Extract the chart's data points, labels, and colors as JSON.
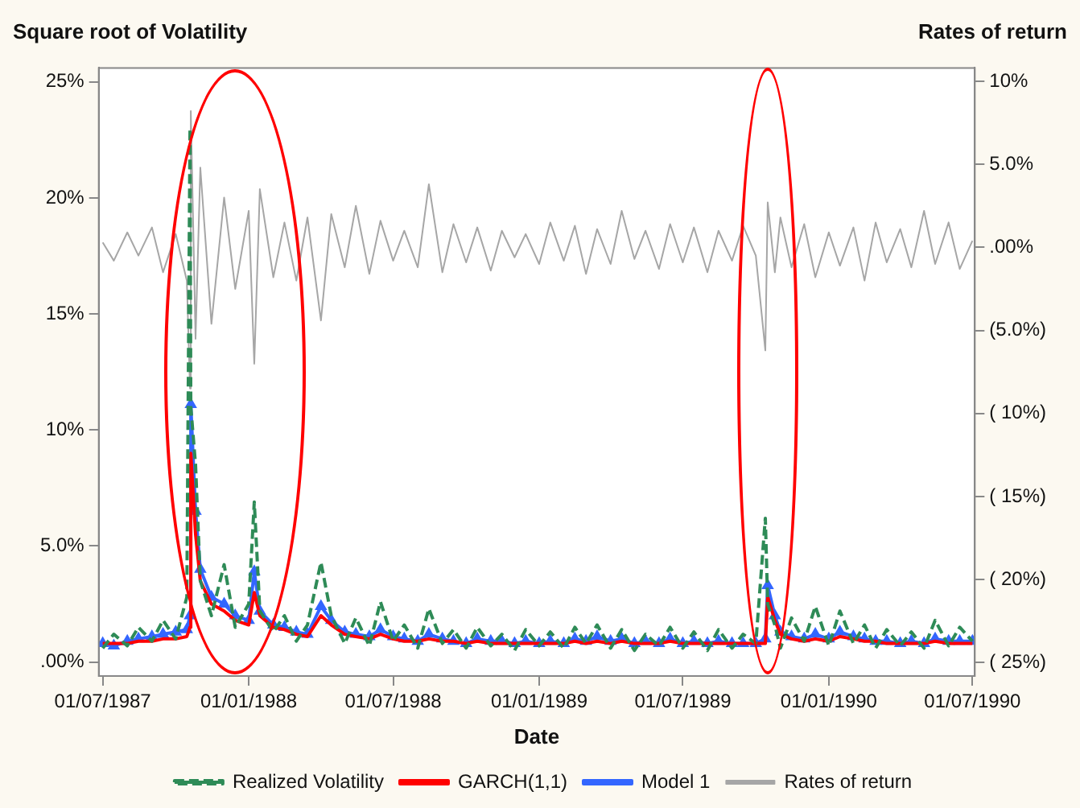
{
  "chart_data": {
    "type": "line",
    "ylabel": "Square root of Volatility",
    "y2label": "Rates of return",
    "xlabel": "Date",
    "x": [
      "1987-07-01",
      "1987-07-15",
      "1987-08-01",
      "1987-08-15",
      "1987-09-01",
      "1987-09-15",
      "1987-10-01",
      "1987-10-15",
      "1987-10-19",
      "1987-10-20",
      "1987-10-26",
      "1987-11-01",
      "1987-11-15",
      "1987-12-01",
      "1987-12-15",
      "1988-01-01",
      "1988-01-08",
      "1988-01-15",
      "1988-02-01",
      "1988-02-15",
      "1988-03-01",
      "1988-03-15",
      "1988-04-01",
      "1988-04-14",
      "1988-05-01",
      "1988-05-15",
      "1988-06-01",
      "1988-06-15",
      "1988-07-01",
      "1988-07-15",
      "1988-08-01",
      "1988-08-15",
      "1988-09-01",
      "1988-09-15",
      "1988-10-01",
      "1988-10-15",
      "1988-11-01",
      "1988-11-15",
      "1988-12-01",
      "1988-12-15",
      "1989-01-01",
      "1989-01-15",
      "1989-02-01",
      "1989-02-15",
      "1989-03-01",
      "1989-03-15",
      "1989-04-01",
      "1989-04-15",
      "1989-05-01",
      "1989-05-15",
      "1989-06-01",
      "1989-06-15",
      "1989-07-01",
      "1989-07-15",
      "1989-08-01",
      "1989-08-15",
      "1989-09-01",
      "1989-09-15",
      "1989-10-01",
      "1989-10-13",
      "1989-10-16",
      "1989-10-25",
      "1989-11-01",
      "1989-11-15",
      "1989-12-01",
      "1989-12-15",
      "1990-01-01",
      "1990-01-15",
      "1990-02-01",
      "1990-02-15",
      "1990-03-01",
      "1990-03-15",
      "1990-04-01",
      "1990-04-15",
      "1990-05-01",
      "1990-05-15",
      "1990-06-01",
      "1990-06-15",
      "1990-07-01"
    ],
    "series": [
      {
        "name": "Realized Volatility",
        "color": "#2e8b57",
        "line_style": "dashed",
        "values": [
          0.6,
          1.2,
          0.7,
          1.5,
          0.9,
          1.8,
          1.0,
          2.8,
          23,
          11,
          8.5,
          3.5,
          2.0,
          4.2,
          1.5,
          2.5,
          6.9,
          2.2,
          1.3,
          2.0,
          0.9,
          1.6,
          4.3,
          2.0,
          0.8,
          1.9,
          0.7,
          2.6,
          0.9,
          1.6,
          0.6,
          2.3,
          0.8,
          1.4,
          0.6,
          1.5,
          0.7,
          1.2,
          0.5,
          1.4,
          0.7,
          1.3,
          0.6,
          1.5,
          0.8,
          1.6,
          0.6,
          1.4,
          0.5,
          1.2,
          0.7,
          1.5,
          0.6,
          1.3,
          0.5,
          1.4,
          0.6,
          1.2,
          0.8,
          6.2,
          2.5,
          1.6,
          0.6,
          1.9,
          0.9,
          2.4,
          0.7,
          2.2,
          0.8,
          1.6,
          0.6,
          1.4,
          0.7,
          1.3,
          0.6,
          1.8,
          0.7,
          1.5,
          0.9
        ]
      },
      {
        "name": "GARCH(1,1)",
        "color": "#ff0000",
        "values": [
          0.8,
          0.8,
          0.8,
          0.9,
          0.9,
          1.0,
          1.0,
          1.1,
          1.5,
          9.0,
          5.5,
          3.5,
          2.5,
          2.2,
          1.8,
          1.6,
          3.0,
          2.0,
          1.5,
          1.4,
          1.2,
          1.1,
          2.0,
          1.6,
          1.2,
          1.1,
          1.0,
          1.2,
          1.0,
          0.9,
          0.9,
          1.0,
          0.9,
          0.9,
          0.8,
          0.9,
          0.8,
          0.8,
          0.8,
          0.8,
          0.8,
          0.8,
          0.8,
          0.9,
          0.8,
          0.9,
          0.8,
          0.9,
          0.8,
          0.8,
          0.8,
          0.9,
          0.8,
          0.8,
          0.8,
          0.8,
          0.8,
          0.8,
          0.8,
          0.8,
          2.8,
          1.8,
          1.2,
          1.0,
          0.9,
          1.0,
          0.9,
          1.1,
          1.0,
          0.9,
          0.9,
          0.8,
          0.8,
          0.8,
          0.8,
          0.9,
          0.8,
          0.8,
          0.8
        ]
      },
      {
        "name": "Model 1",
        "color": "#3366ff",
        "marker": "triangle",
        "values": [
          0.8,
          0.7,
          0.9,
          1.0,
          1.1,
          1.2,
          1.3,
          1.4,
          2.0,
          11.1,
          6.5,
          4.0,
          2.8,
          2.5,
          2.0,
          1.8,
          3.9,
          2.2,
          1.6,
          1.5,
          1.3,
          1.2,
          2.4,
          1.8,
          1.3,
          1.2,
          1.1,
          1.4,
          1.1,
          1.0,
          0.9,
          1.2,
          1.0,
          0.9,
          0.8,
          1.0,
          0.9,
          0.9,
          0.8,
          0.9,
          0.8,
          0.9,
          0.8,
          1.0,
          0.9,
          1.1,
          0.9,
          1.0,
          0.8,
          0.9,
          0.8,
          1.0,
          0.8,
          0.9,
          0.8,
          0.9,
          0.8,
          0.8,
          0.8,
          1.0,
          3.3,
          2.0,
          1.3,
          1.1,
          1.0,
          1.2,
          1.0,
          1.3,
          1.1,
          1.0,
          0.9,
          0.9,
          0.8,
          0.9,
          0.8,
          1.0,
          0.9,
          0.9,
          0.9
        ]
      },
      {
        "name": "Rates of return",
        "color": "#a6a6a6",
        "axis": "y2",
        "values": [
          0.3,
          -0.8,
          0.9,
          -0.5,
          1.2,
          -1.5,
          0.8,
          -2.0,
          -8.5,
          8.2,
          -5.5,
          4.8,
          -4.6,
          3.0,
          -2.5,
          2.2,
          -7.0,
          3.5,
          -1.8,
          1.5,
          -2.0,
          1.8,
          -4.4,
          2.0,
          -1.2,
          2.5,
          -1.6,
          1.6,
          -0.8,
          1.0,
          -1.2,
          3.8,
          -1.5,
          1.4,
          -0.9,
          1.2,
          -1.4,
          1.0,
          -0.6,
          0.8,
          -1.0,
          1.5,
          -0.8,
          1.3,
          -1.6,
          1.1,
          -1.0,
          2.2,
          -0.7,
          1.0,
          -1.3,
          1.4,
          -0.9,
          1.2,
          -1.5,
          1.0,
          -0.8,
          1.3,
          -0.5,
          -6.2,
          2.7,
          -1.5,
          1.8,
          -1.2,
          1.4,
          -1.8,
          0.9,
          -1.1,
          1.2,
          -2.0,
          1.5,
          -0.9,
          1.1,
          -1.2,
          2.2,
          -1.0,
          1.5,
          -1.3,
          0.4
        ]
      }
    ],
    "xlim": [
      "1987-06-26",
      "1990-07-04"
    ],
    "xticks": [
      {
        "value": "1987-07-01",
        "label": "01/07/1987"
      },
      {
        "value": "1988-01-01",
        "label": "01/01/1988"
      },
      {
        "value": "1988-07-01",
        "label": "01/07/1988"
      },
      {
        "value": "1989-01-01",
        "label": "01/01/1989"
      },
      {
        "value": "1989-07-01",
        "label": "01/07/1989"
      },
      {
        "value": "1990-01-01",
        "label": "01/01/1990"
      },
      {
        "value": "1990-07-01",
        "label": "01/07/1990"
      }
    ],
    "ylim": [
      -0.6,
      25.6
    ],
    "yticks": [
      {
        "value": 0,
        "label": ".00%"
      },
      {
        "value": 5,
        "label": "5.0%"
      },
      {
        "value": 10,
        "label": "10%"
      },
      {
        "value": 15,
        "label": "15%"
      },
      {
        "value": 20,
        "label": "20%"
      },
      {
        "value": 25,
        "label": "25%"
      }
    ],
    "y2lim": [
      -25.8,
      10.8
    ],
    "y2ticks": [
      {
        "value": -25,
        "label": "( 25%)"
      },
      {
        "value": -20,
        "label": "( 20%)"
      },
      {
        "value": -15,
        "label": "( 15%)"
      },
      {
        "value": -10,
        "label": "( 10%)"
      },
      {
        "value": -5,
        "label": "(5.0%)"
      },
      {
        "value": 0,
        "label": ".00%"
      },
      {
        "value": 5,
        "label": "5.0%"
      },
      {
        "value": 10,
        "label": "10%"
      }
    ],
    "grid": false,
    "legend": "bottom"
  }
}
